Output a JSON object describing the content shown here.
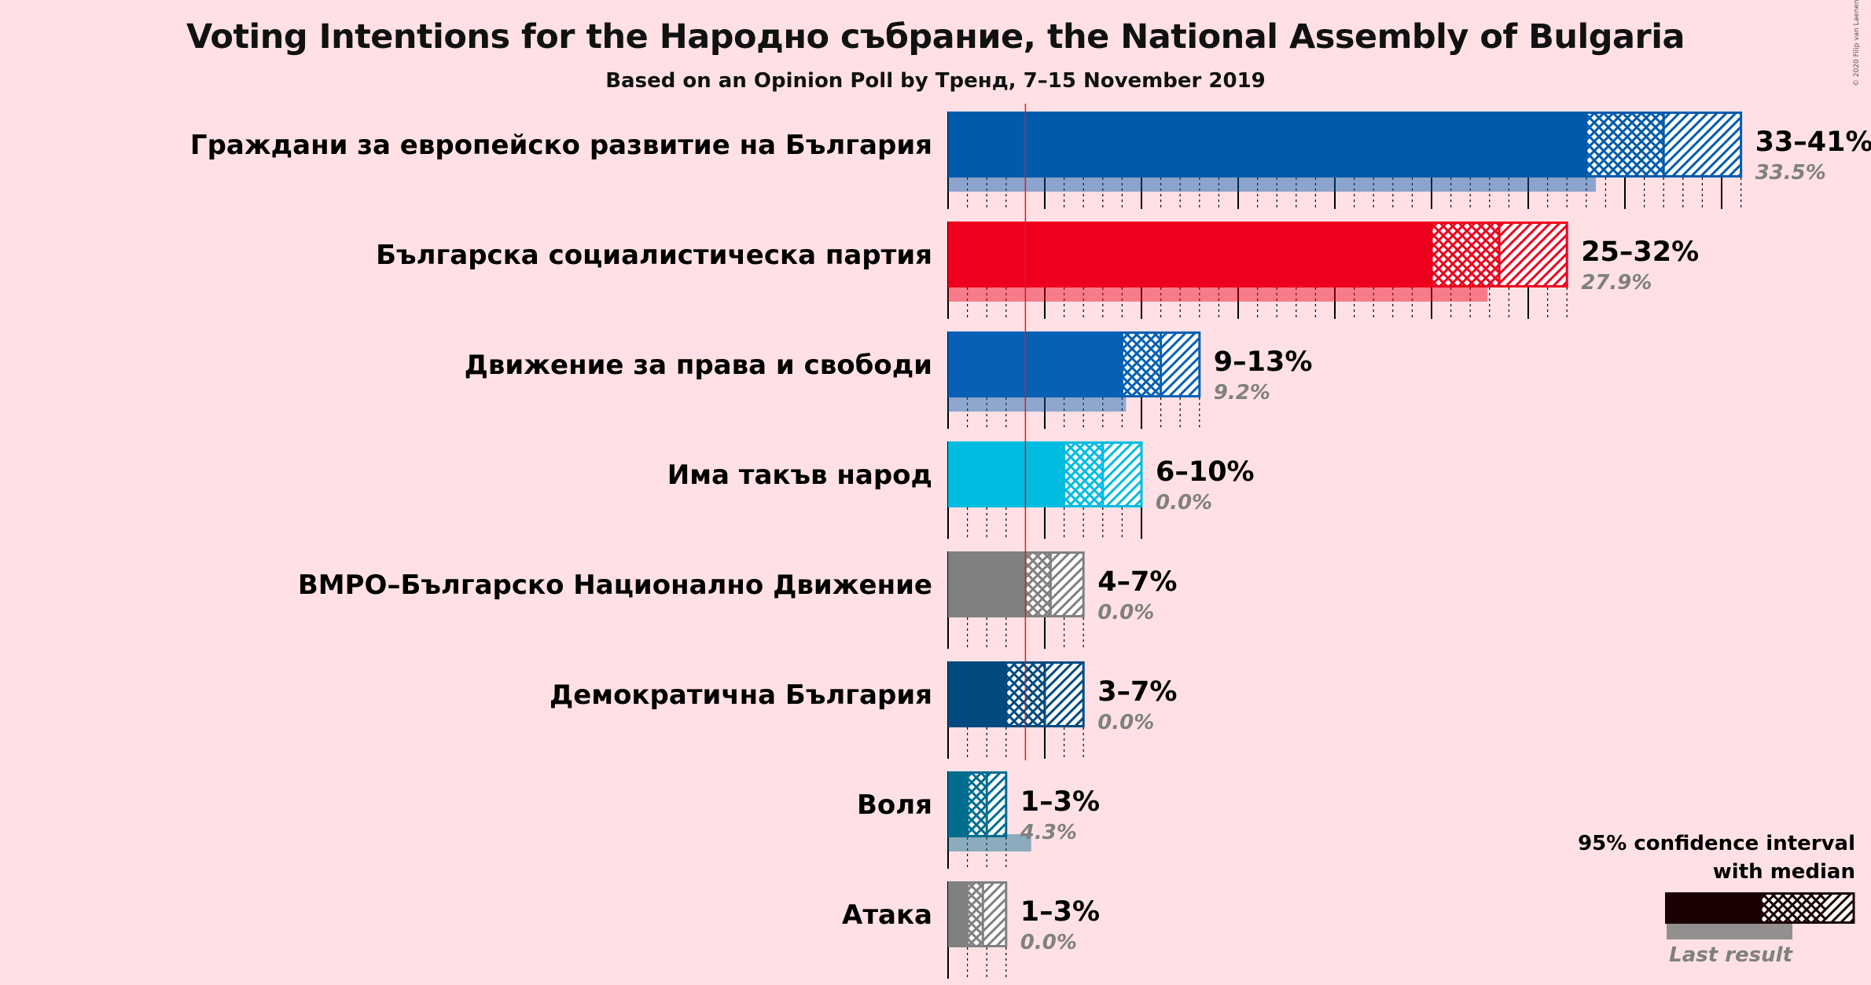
{
  "title": "Voting Intentions for the Народно събрание, the National Assembly of Bulgaria",
  "subtitle": "Based on an Opinion Poll by Тренд, 7–15 November 2019",
  "credit": "© 2020 Filip van Laenen",
  "legend": {
    "line1": "95% confidence interval",
    "line2": "with median",
    "last_result": "Last result"
  },
  "chart_data": {
    "type": "bar",
    "orientation": "horizontal",
    "xlim": [
      0,
      41
    ],
    "threshold": 4,
    "series_description": "confidence intervals with median and last result",
    "parties": [
      {
        "name": "Граждани за европейско развитие на България",
        "low": 33,
        "high": 41,
        "median": 37,
        "last": 33.5,
        "range_label": "33–41%",
        "last_label": "33.5%",
        "color": "#005BAC"
      },
      {
        "name": "Българска социалистическа партия",
        "low": 25,
        "high": 32,
        "median": 28.5,
        "last": 27.9,
        "range_label": "25–32%",
        "last_label": "27.9%",
        "color": "#EE001D"
      },
      {
        "name": "Движение за права и свободи",
        "low": 9,
        "high": 13,
        "median": 11,
        "last": 9.2,
        "range_label": "9–13%",
        "last_label": "9.2%",
        "color": "#0760B4"
      },
      {
        "name": "Има такъв народ",
        "low": 6,
        "high": 10,
        "median": 8,
        "last": 0,
        "range_label": "6–10%",
        "last_label": "0.0%",
        "color": "#00BCE1"
      },
      {
        "name": "ВМРО–Българско Национално Движение",
        "low": 4,
        "high": 7,
        "median": 5.3,
        "last": 0,
        "range_label": "4–7%",
        "last_label": "0.0%",
        "color": "#808080"
      },
      {
        "name": "Демократична България",
        "low": 3,
        "high": 7,
        "median": 5,
        "last": 0,
        "range_label": "3–7%",
        "last_label": "0.0%",
        "color": "#004A80"
      },
      {
        "name": "Воля",
        "low": 1,
        "high": 3,
        "median": 2,
        "last": 4.3,
        "range_label": "1–3%",
        "last_label": "4.3%",
        "color": "#006D8F"
      },
      {
        "name": "Атака",
        "low": 1,
        "high": 3,
        "median": 1.8,
        "last": 0,
        "range_label": "1–3%",
        "last_label": "0.0%",
        "color": "#808080"
      }
    ]
  }
}
